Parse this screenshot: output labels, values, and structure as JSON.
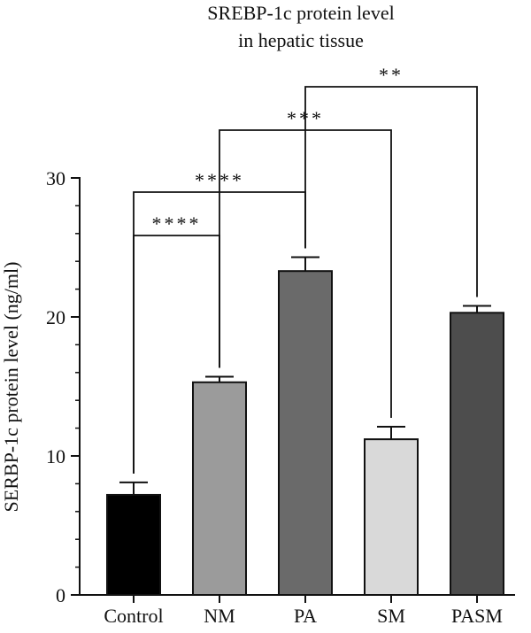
{
  "chart_data": {
    "type": "bar",
    "title": [
      "SREBP-1c protein level",
      "in hepatic tissue"
    ],
    "ylabel": "SERBP-1c protein level (ng/ml)",
    "xlabel": "",
    "ylim": [
      0,
      30
    ],
    "yticks": [
      0,
      10,
      20,
      30
    ],
    "minor_tick_step": 2,
    "categories": [
      "Control",
      "NM",
      "PA",
      "SM",
      "PASM"
    ],
    "values": [
      7.2,
      15.3,
      23.3,
      11.2,
      20.3
    ],
    "errors": [
      0.9,
      0.4,
      1.0,
      0.9,
      0.5
    ],
    "colors": [
      "#000000",
      "#9b9b9b",
      "#6a6a6a",
      "#d9d9d9",
      "#4d4d4d"
    ],
    "comparisons": [
      {
        "from": "Control",
        "to": "NM",
        "label": "****"
      },
      {
        "from": "Control",
        "to": "PA",
        "label": "****"
      },
      {
        "from": "NM",
        "to": "SM",
        "label": "***"
      },
      {
        "from": "PA",
        "to": "PASM",
        "label": "**"
      }
    ],
    "grid": false,
    "legend": "none"
  }
}
